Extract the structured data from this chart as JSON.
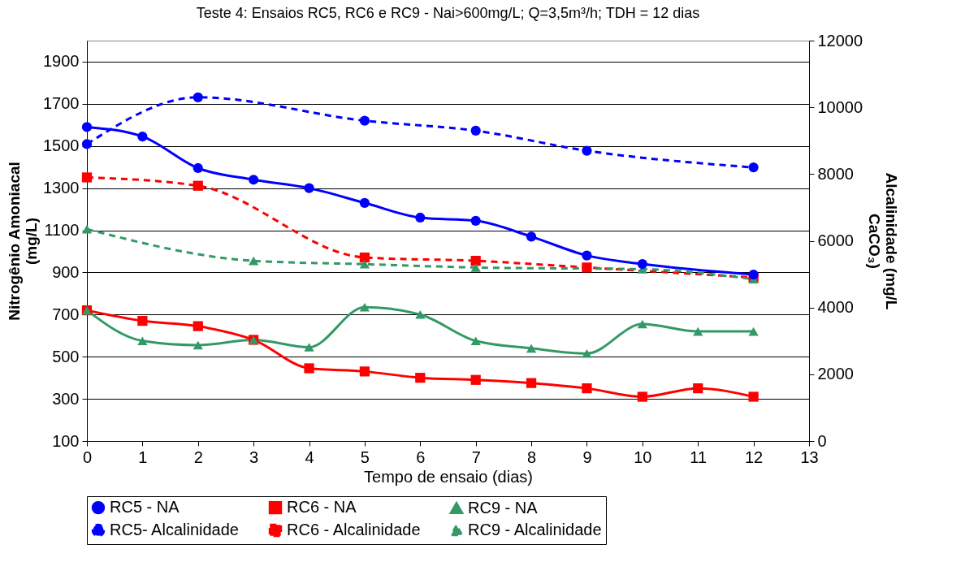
{
  "chart_data": {
    "type": "line",
    "title": "Teste 4: Ensaios RC5, RC6 e RC9 - Nai>600mg/L; Q=3,5m³/h; TDH = 12 dias",
    "xlabel": "Tempo de ensaio (dias)",
    "ylabel": "Nitrogênio Amoniacal (mg/L)",
    "y2label": "Alcalinidade (mg/L CaCO₃)",
    "xlim": [
      0,
      13
    ],
    "xticks": [
      0,
      1,
      2,
      3,
      4,
      5,
      6,
      7,
      8,
      9,
      10,
      11,
      12,
      13
    ],
    "ylim": [
      100,
      2000
    ],
    "yticks": [
      100,
      300,
      500,
      700,
      900,
      1100,
      1300,
      1500,
      1700,
      1900
    ],
    "y2lim": [
      0,
      12000
    ],
    "y2ticks": [
      0,
      2000,
      4000,
      6000,
      8000,
      10000,
      12000
    ],
    "grid": "y",
    "legend": "bottom",
    "series": [
      {
        "name": "RC5 - NA",
        "color": "#0000ff",
        "marker": "circle",
        "line_style": "solid",
        "x": [
          0,
          1,
          2,
          3,
          4,
          5,
          6,
          7,
          8,
          9,
          10,
          12
        ],
        "values": [
          1590,
          1545,
          1395,
          1340,
          1300,
          1230,
          1160,
          1145,
          1070,
          980,
          940,
          890
        ]
      },
      {
        "name": "RC6 - NA",
        "color": "#ff0000",
        "marker": "square",
        "line_style": "solid",
        "x": [
          0,
          1,
          2,
          3,
          4,
          5,
          6,
          7,
          8,
          9,
          10,
          11,
          12
        ],
        "values": [
          720,
          670,
          645,
          580,
          445,
          430,
          400,
          390,
          375,
          350,
          310,
          350,
          310
        ]
      },
      {
        "name": "RC9 - NA",
        "color": "#339966",
        "marker": "triangle",
        "line_style": "solid",
        "x": [
          0,
          1,
          2,
          3,
          4,
          5,
          6,
          7,
          8,
          9,
          10,
          11,
          12
        ],
        "values": [
          720,
          575,
          555,
          580,
          545,
          735,
          700,
          575,
          540,
          515,
          655,
          620,
          620
        ]
      },
      {
        "name": "RC5- Alcalinidade",
        "color": "#0000ff",
        "marker": "circle",
        "line_style": "dashed",
        "axis": "y2",
        "x": [
          0,
          2,
          5,
          7,
          9,
          12
        ],
        "values": [
          8900,
          10300,
          9600,
          9300,
          8700,
          8200
        ]
      },
      {
        "name": "RC6 - Alcalinidade",
        "color": "#ff0000",
        "marker": "square",
        "line_style": "dashed",
        "axis": "y2",
        "x": [
          0,
          2,
          5,
          7,
          9,
          12
        ],
        "values": [
          7900,
          7650,
          5500,
          5400,
          5200,
          4900
        ]
      },
      {
        "name": "RC9 - Alcalinidade",
        "color": "#339966",
        "marker": "triangle",
        "line_style": "dashed",
        "axis": "y2",
        "x": [
          0,
          3,
          5,
          7,
          10,
          12
        ],
        "values": [
          6350,
          5400,
          5300,
          5200,
          5150,
          4850
        ]
      }
    ]
  }
}
